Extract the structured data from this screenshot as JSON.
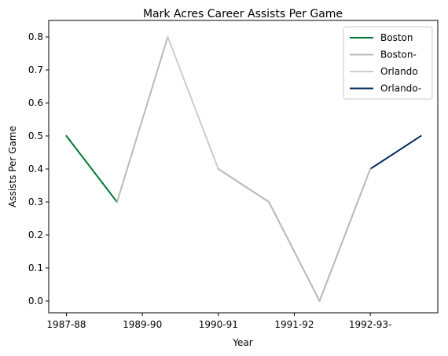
{
  "chart_data": {
    "type": "line",
    "title": "Mark Acres Career Assists Per Game",
    "xlabel": "Year",
    "ylabel": "Assists Per Game",
    "xtick_labels": [
      "1987-88",
      "1989-90",
      "1990-91",
      "1991-92",
      "1992-93-"
    ],
    "yticks": [
      0.0,
      0.1,
      0.2,
      0.3,
      0.4,
      0.5,
      0.6,
      0.7,
      0.8
    ],
    "ytick_labels": [
      "0.0",
      "0.1",
      "0.2",
      "0.3",
      "0.4",
      "0.5",
      "0.6",
      "0.7",
      "0.8"
    ],
    "ylim": [
      -0.04,
      0.84
    ],
    "grid": false,
    "legend_position": "top-right",
    "series": [
      {
        "name": "Boston",
        "color": "#007A33",
        "x": [
          0,
          1
        ],
        "values": [
          0.5,
          0.3
        ]
      },
      {
        "name": "Boston-",
        "color": "#BABABA",
        "x": [
          1,
          2
        ],
        "values": [
          0.3,
          0.8
        ]
      },
      {
        "name": "Orlando",
        "color": "#C4CED4",
        "x": [
          2,
          3,
          4,
          5,
          6
        ],
        "values": [
          0.8,
          0.4,
          0.3,
          0.0,
          0.4
        ]
      },
      {
        "name": "Orlando-",
        "color": "#002B5C",
        "x": [
          6,
          7
        ],
        "values": [
          0.4,
          0.5
        ]
      }
    ],
    "overdraw": [
      {
        "color": "#BABABA",
        "x": [
          3,
          4,
          5,
          6
        ],
        "values": [
          0.4,
          0.3,
          0.0,
          0.4
        ]
      }
    ]
  }
}
